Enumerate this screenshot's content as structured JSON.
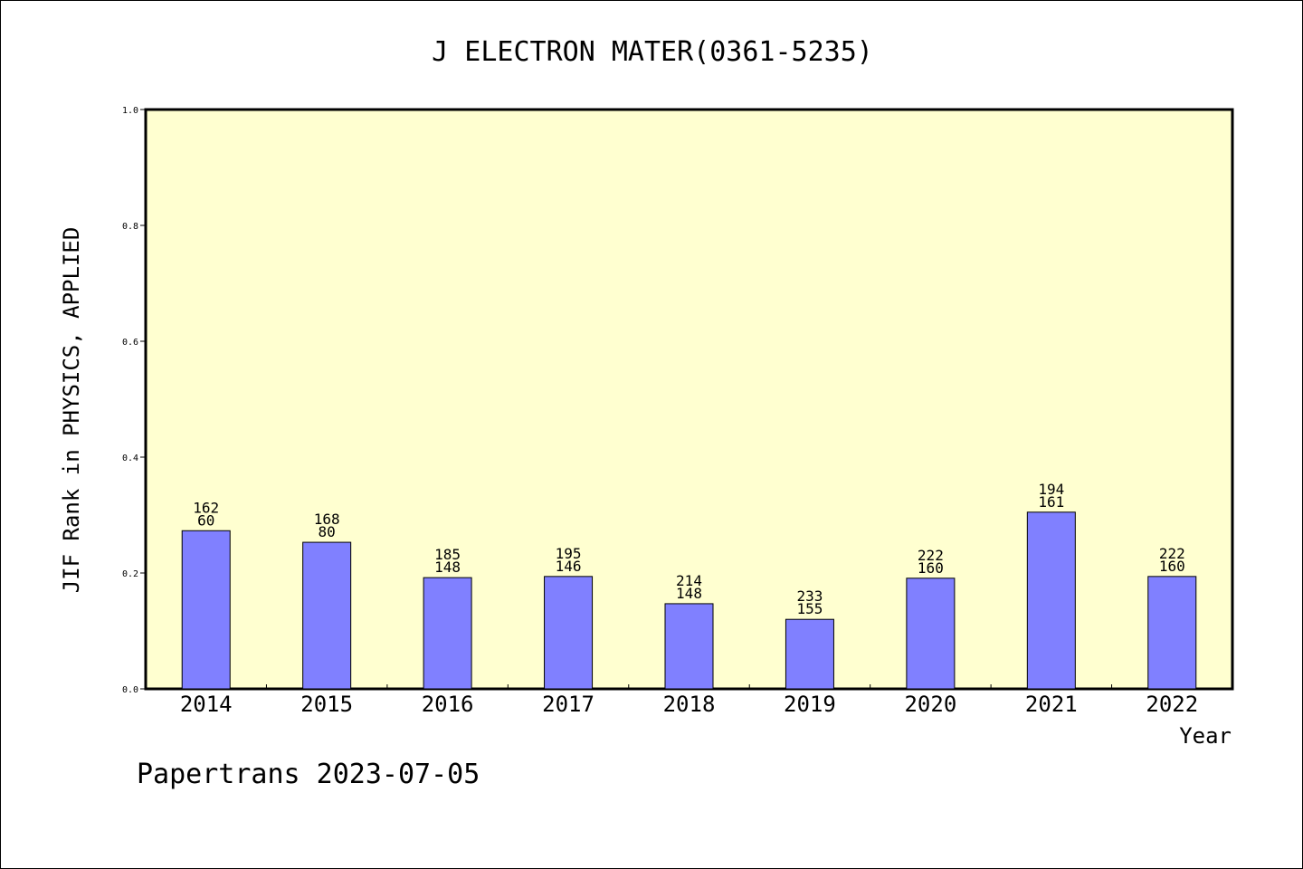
{
  "chart_data": {
    "type": "bar",
    "title": "J ELECTRON MATER(0361-5235)",
    "xlabel": "Year",
    "ylabel": "JIF Rank in PHYSICS, APPLIED",
    "ylim": [
      0,
      1.0
    ],
    "yticks": [
      "0.0",
      "0.2",
      "0.4",
      "0.6",
      "0.8",
      "1.0"
    ],
    "categories": [
      "2014",
      "2015",
      "2016",
      "2017",
      "2018",
      "2019",
      "2020",
      "2021",
      "2022"
    ],
    "values": [
      0.273,
      0.253,
      0.192,
      0.194,
      0.147,
      0.12,
      0.191,
      0.305,
      0.194
    ],
    "label_top": [
      "162",
      "168",
      "185",
      "195",
      "214",
      "233",
      "222",
      "194",
      "222"
    ],
    "label_bottom": [
      "60",
      "80",
      "148",
      "146",
      "148",
      "155",
      "160",
      "161",
      "160"
    ],
    "grid": false,
    "colors": {
      "bar": "#8080ff",
      "plot_bg": "#ffffd0"
    }
  },
  "footer": "Papertrans 2023-07-05"
}
